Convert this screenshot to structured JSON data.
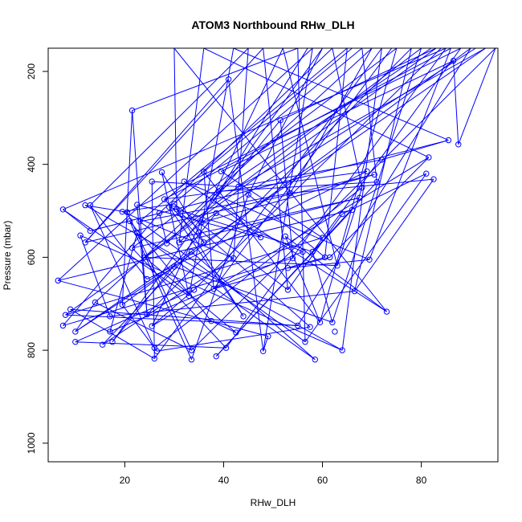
{
  "chart_data": {
    "type": "scatter",
    "title": "ATOM3 Northbound RHw_DLH",
    "xlabel": "RHw_DLH",
    "ylabel": "Pressure (mbar)",
    "xlim": [
      4.5,
      95.5
    ],
    "ylim": [
      1040,
      150
    ],
    "y_reversed": true,
    "x_ticks": [
      20,
      40,
      60,
      80
    ],
    "y_ticks": [
      200,
      400,
      600,
      800,
      1000
    ],
    "grid": false,
    "legend": "none",
    "series_color": "#0000ff",
    "points": [
      [
        7.5,
        497
      ],
      [
        12,
        488
      ],
      [
        13,
        488
      ],
      [
        7.5,
        747
      ],
      [
        10,
        760
      ],
      [
        10,
        782
      ],
      [
        17.5,
        782
      ],
      [
        15.5,
        788
      ],
      [
        6.5,
        650
      ],
      [
        9,
        712
      ],
      [
        8,
        724
      ],
      [
        11,
        553
      ],
      [
        12,
        568
      ],
      [
        13,
        543
      ],
      [
        14,
        697
      ],
      [
        17,
        727
      ],
      [
        19.5,
        702
      ],
      [
        17,
        760
      ],
      [
        21.5,
        284
      ],
      [
        19.5,
        502
      ],
      [
        20.5,
        503
      ],
      [
        21,
        522
      ],
      [
        21.5,
        580
      ],
      [
        22.5,
        487
      ],
      [
        23,
        523
      ],
      [
        22.5,
        548
      ],
      [
        24,
        600
      ],
      [
        24.5,
        647
      ],
      [
        25.5,
        748
      ],
      [
        26,
        795
      ],
      [
        26,
        818
      ],
      [
        26.5,
        802
      ],
      [
        24.5,
        723
      ],
      [
        25.5,
        437
      ],
      [
        27,
        505
      ],
      [
        27.5,
        417
      ],
      [
        28,
        475
      ],
      [
        28.5,
        570
      ],
      [
        29,
        492
      ],
      [
        30,
        485
      ],
      [
        30.5,
        497
      ],
      [
        30,
        620
      ],
      [
        31,
        568
      ],
      [
        32,
        437
      ],
      [
        33,
        683
      ],
      [
        33.5,
        588
      ],
      [
        33.5,
        800
      ],
      [
        33.5,
        820
      ],
      [
        34,
        670
      ],
      [
        35,
        547
      ],
      [
        35.5,
        525
      ],
      [
        36,
        568
      ],
      [
        36,
        416
      ],
      [
        37.5,
        737
      ],
      [
        38,
        478
      ],
      [
        38.5,
        505
      ],
      [
        38,
        668
      ],
      [
        38.5,
        813
      ],
      [
        39,
        458
      ],
      [
        39.5,
        415
      ],
      [
        40.5,
        795
      ],
      [
        41,
        217
      ],
      [
        42,
        602
      ],
      [
        42.5,
        762
      ],
      [
        43,
        448
      ],
      [
        44,
        727
      ],
      [
        45,
        465
      ],
      [
        47.5,
        557
      ],
      [
        48,
        802
      ],
      [
        49,
        770
      ],
      [
        51.5,
        305
      ],
      [
        52.5,
        555
      ],
      [
        53,
        670
      ],
      [
        53,
        623
      ],
      [
        53.5,
        462
      ],
      [
        54,
        602
      ],
      [
        55,
        747
      ],
      [
        56,
        588
      ],
      [
        56.5,
        782
      ],
      [
        57.5,
        750
      ],
      [
        58,
        588
      ],
      [
        58.5,
        820
      ],
      [
        59.5,
        740
      ],
      [
        60,
        558
      ],
      [
        60.5,
        600
      ],
      [
        61.5,
        600
      ],
      [
        62,
        740
      ],
      [
        62.5,
        760
      ],
      [
        63,
        618
      ],
      [
        64,
        507
      ],
      [
        64,
        800
      ],
      [
        66,
        498
      ],
      [
        66.5,
        673
      ],
      [
        67.5,
        472
      ],
      [
        68,
        450
      ],
      [
        69,
        415
      ],
      [
        69.5,
        605
      ],
      [
        70.5,
        422
      ],
      [
        71,
        438
      ],
      [
        72,
        390
      ],
      [
        73,
        717
      ],
      [
        81,
        420
      ],
      [
        81.5,
        385
      ],
      [
        82.5,
        432
      ],
      [
        85.5,
        348
      ],
      [
        86.5,
        177
      ],
      [
        87.5,
        357
      ]
    ]
  }
}
